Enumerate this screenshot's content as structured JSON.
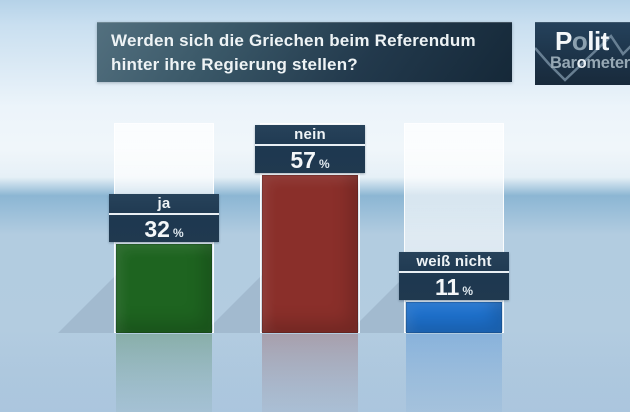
{
  "title": {
    "question_line1": "Werden sich die Griechen beim Referendum",
    "question_line2": "hinter ihre Regierung stellen?"
  },
  "logo": {
    "line1": "Polit",
    "line2": "Barometer"
  },
  "chart_data": {
    "type": "bar",
    "title": "Werden sich die Griechen beim Referendum hinter ihre Regierung stellen?",
    "unit": "%",
    "ylim": [
      0,
      100
    ],
    "grid": false,
    "legend": false,
    "categories": [
      "ja",
      "nein",
      "weiß nicht"
    ],
    "values": [
      32,
      57,
      11
    ],
    "bars": [
      {
        "label": "ja",
        "value": 32,
        "color": "#1e6420"
      },
      {
        "label": "nein",
        "value": 57,
        "color": "#8a2f2a"
      },
      {
        "label": "weiß nicht",
        "value": 11,
        "color": "#1e72cf"
      }
    ]
  }
}
